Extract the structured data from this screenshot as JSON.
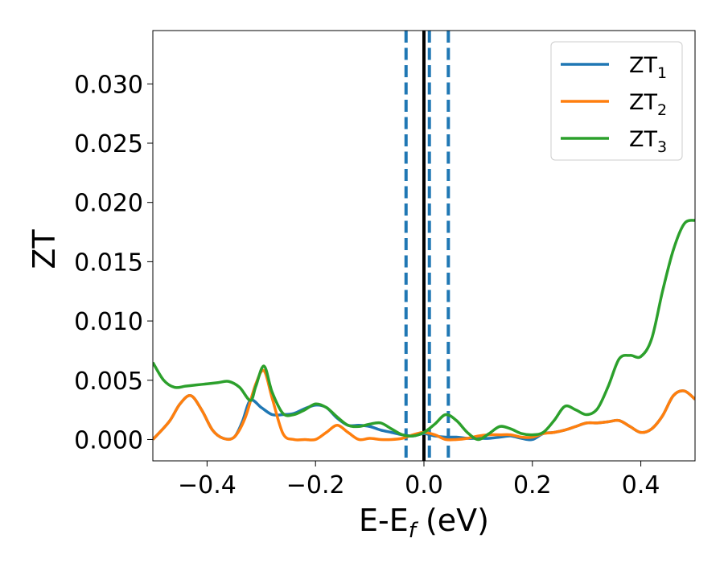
{
  "chart_data": {
    "type": "line",
    "xlabel": "E-E",
    "xlabel_sub": "f",
    "xlabel_unit": " (eV)",
    "ylabel": "ZT",
    "xlim": [
      -0.5,
      0.5
    ],
    "ylim": [
      -0.0018,
      0.0345
    ],
    "x_ticks": [
      -0.4,
      -0.2,
      0.0,
      0.2,
      0.4
    ],
    "x_tick_labels": [
      "−0.4",
      "−0.2",
      "0.0",
      "0.2",
      "0.4"
    ],
    "y_ticks": [
      0.0,
      0.005,
      0.01,
      0.015,
      0.02,
      0.025,
      0.03
    ],
    "y_tick_labels": [
      "0.000",
      "0.005",
      "0.010",
      "0.015",
      "0.020",
      "0.025",
      "0.030"
    ],
    "grid": false,
    "legend_position": "top-right",
    "reference_lines": [
      {
        "x": 0.0,
        "style": "solid",
        "color": "#000000"
      },
      {
        "x": -0.033,
        "style": "dashed",
        "color": "#1f77b4"
      },
      {
        "x": 0.01,
        "style": "dashed",
        "color": "#1f77b4"
      },
      {
        "x": 0.045,
        "style": "dashed",
        "color": "#1f77b4"
      }
    ],
    "series": [
      {
        "name": "ZT",
        "sub": "1",
        "color": "#1f77b4",
        "x": [
          -0.5,
          -0.47,
          -0.45,
          -0.43,
          -0.41,
          -0.39,
          -0.37,
          -0.35,
          -0.335,
          -0.32,
          -0.3,
          -0.28,
          -0.26,
          -0.24,
          -0.22,
          -0.2,
          -0.18,
          -0.16,
          -0.14,
          -0.12,
          -0.1,
          -0.08,
          -0.06,
          -0.04,
          -0.02,
          0.0,
          0.02,
          0.04,
          0.06,
          0.08,
          0.1,
          0.12,
          0.14,
          0.16,
          0.18,
          0.2,
          0.22,
          0.24,
          0.26,
          0.28,
          0.3,
          0.32,
          0.34,
          0.36,
          0.38,
          0.4,
          0.42,
          0.44,
          0.46,
          0.48,
          0.5
        ],
        "y": [
          0.0,
          0.0015,
          0.003,
          0.0037,
          0.0025,
          0.0008,
          0.0001,
          0.0002,
          0.0015,
          0.0033,
          0.0027,
          0.0021,
          0.0021,
          0.0022,
          0.0026,
          0.0029,
          0.0027,
          0.0018,
          0.0012,
          0.0012,
          0.0011,
          0.0008,
          0.0006,
          0.0004,
          0.0003,
          0.0005,
          0.0003,
          0.0002,
          0.0002,
          0.0001,
          0.0001,
          0.0001,
          0.0002,
          0.0003,
          0.0001,
          0.0,
          0.0005,
          0.0006,
          0.0008,
          0.0011,
          0.0014,
          0.0014,
          0.0015,
          0.0016,
          0.0011,
          0.0006,
          0.0009,
          0.002,
          0.0037,
          0.0041,
          0.0034
        ]
      },
      {
        "name": "ZT",
        "sub": "2",
        "color": "#ff7f0e",
        "x": [
          -0.5,
          -0.47,
          -0.45,
          -0.43,
          -0.41,
          -0.39,
          -0.37,
          -0.35,
          -0.33,
          -0.31,
          -0.295,
          -0.28,
          -0.26,
          -0.24,
          -0.22,
          -0.2,
          -0.18,
          -0.16,
          -0.14,
          -0.12,
          -0.1,
          -0.08,
          -0.06,
          -0.04,
          -0.02,
          0.0,
          0.02,
          0.04,
          0.06,
          0.08,
          0.1,
          0.12,
          0.14,
          0.16,
          0.18,
          0.2,
          0.22,
          0.24,
          0.26,
          0.28,
          0.3,
          0.32,
          0.34,
          0.36,
          0.38,
          0.4,
          0.42,
          0.44,
          0.46,
          0.48,
          0.5
        ],
        "y": [
          0.0,
          0.0015,
          0.003,
          0.0037,
          0.0025,
          0.0008,
          0.0001,
          0.0002,
          0.0018,
          0.0047,
          0.0058,
          0.0035,
          0.0005,
          0.0,
          0.0,
          0.0,
          0.0006,
          0.0012,
          0.0006,
          0.0,
          0.0001,
          0.0,
          0.0,
          0.0001,
          0.0004,
          0.0006,
          0.0004,
          0.0,
          0.0,
          0.0001,
          0.0003,
          0.0004,
          0.0004,
          0.0004,
          0.0002,
          0.0002,
          0.0005,
          0.0006,
          0.0008,
          0.0011,
          0.0014,
          0.0014,
          0.0015,
          0.0016,
          0.0011,
          0.0006,
          0.0009,
          0.002,
          0.0037,
          0.0041,
          0.0034
        ]
      },
      {
        "name": "ZT",
        "sub": "3",
        "color": "#2ca02c",
        "x": [
          -0.5,
          -0.48,
          -0.46,
          -0.44,
          -0.42,
          -0.4,
          -0.38,
          -0.36,
          -0.34,
          -0.32,
          -0.31,
          -0.295,
          -0.28,
          -0.26,
          -0.24,
          -0.22,
          -0.2,
          -0.18,
          -0.16,
          -0.14,
          -0.12,
          -0.1,
          -0.08,
          -0.06,
          -0.04,
          -0.02,
          0.0,
          0.02,
          0.04,
          0.06,
          0.08,
          0.1,
          0.12,
          0.14,
          0.16,
          0.18,
          0.2,
          0.22,
          0.24,
          0.26,
          0.28,
          0.3,
          0.32,
          0.34,
          0.36,
          0.38,
          0.4,
          0.42,
          0.44,
          0.46,
          0.48,
          0.5
        ],
        "y": [
          0.0065,
          0.005,
          0.0044,
          0.0045,
          0.0046,
          0.0047,
          0.0048,
          0.0049,
          0.0044,
          0.0033,
          0.0045,
          0.0062,
          0.004,
          0.0022,
          0.0021,
          0.0025,
          0.003,
          0.0027,
          0.0019,
          0.0012,
          0.0011,
          0.0013,
          0.0014,
          0.0009,
          0.0004,
          0.0003,
          0.0006,
          0.0013,
          0.0021,
          0.0016,
          0.0006,
          0.0,
          0.0005,
          0.0011,
          0.0009,
          0.0005,
          0.0004,
          0.0006,
          0.0016,
          0.0028,
          0.0025,
          0.0021,
          0.0026,
          0.0045,
          0.0068,
          0.0071,
          0.007,
          0.0085,
          0.0125,
          0.016,
          0.0182,
          0.0185
        ]
      }
    ]
  }
}
